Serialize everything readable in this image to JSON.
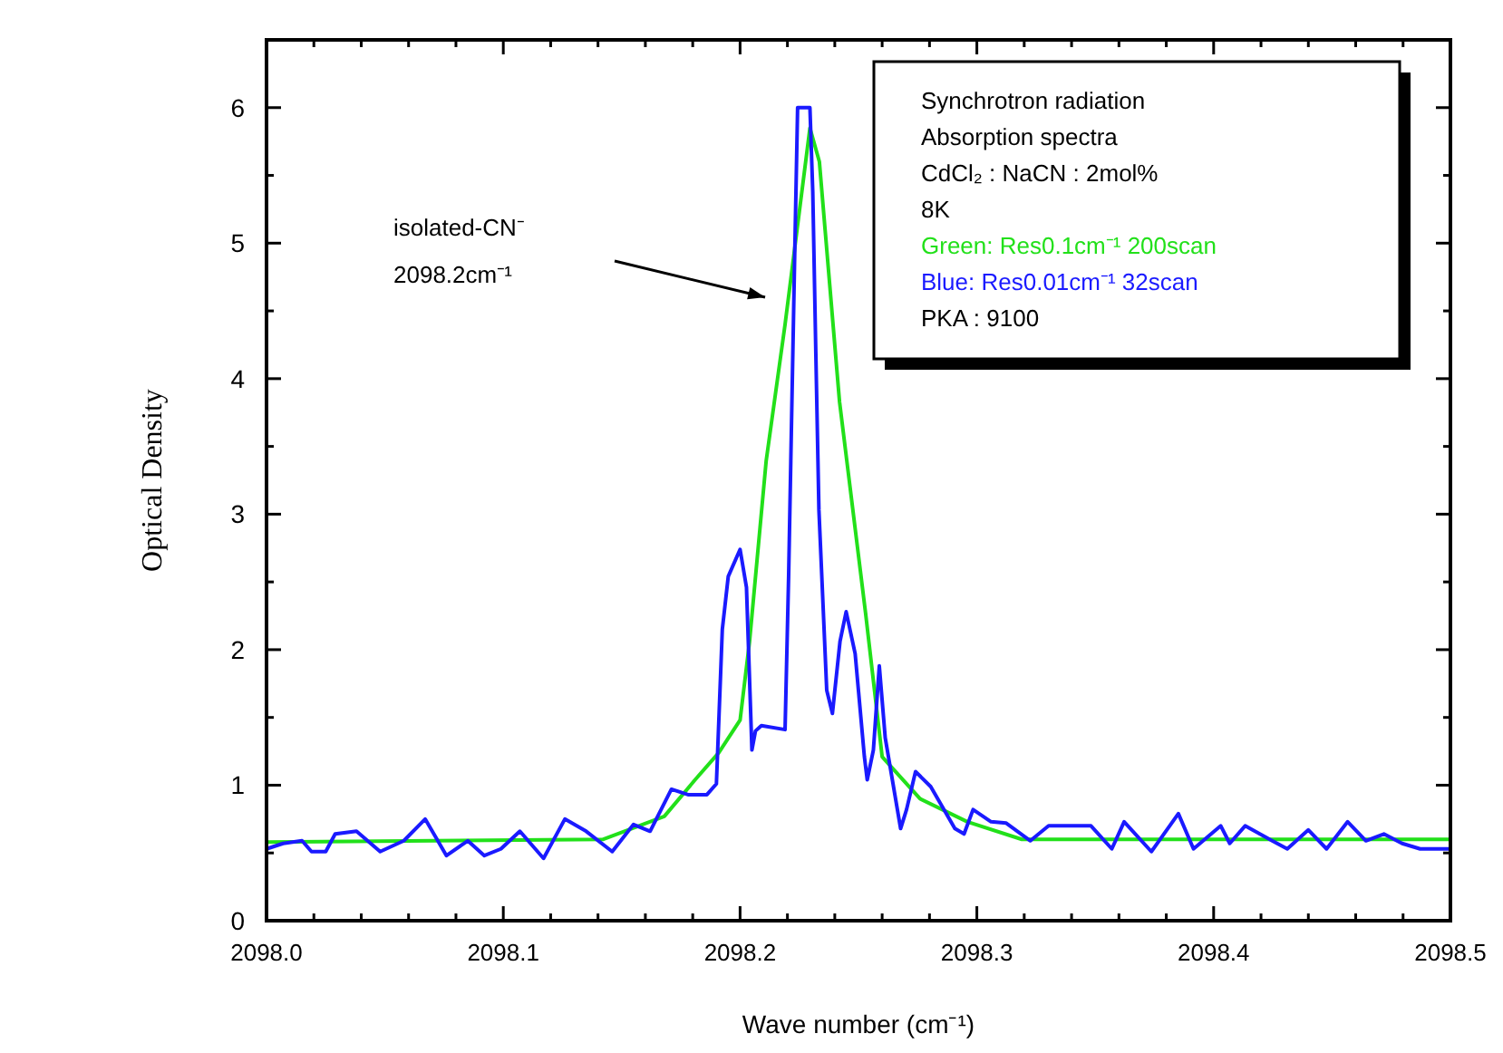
{
  "chart_data": {
    "type": "line",
    "xlabel": "Wave number (cm⁻¹)",
    "ylabel": "Optical Density",
    "xlim": [
      2098.0,
      2098.5
    ],
    "ylim": [
      0,
      6.5
    ],
    "xticks": [
      {
        "value": 2098.0,
        "label": "2098.0"
      },
      {
        "value": 2098.02,
        "label": null
      },
      {
        "value": 2098.04,
        "label": null
      },
      {
        "value": 2098.06,
        "label": null
      },
      {
        "value": 2098.08,
        "label": null
      },
      2098.1,
      {
        "value": 2098.12,
        "label": null
      },
      {
        "value": 2098.14,
        "label": null
      },
      {
        "value": 2098.16,
        "label": null
      },
      {
        "value": 2098.18,
        "label": null
      },
      2098.2,
      {
        "value": 2098.22,
        "label": null
      },
      {
        "value": 2098.24,
        "label": null
      },
      {
        "value": 2098.26,
        "label": null
      },
      {
        "value": 2098.28,
        "label": null
      },
      2098.3,
      {
        "value": 2098.32,
        "label": null
      },
      {
        "value": 2098.34,
        "label": null
      },
      {
        "value": 2098.36,
        "label": null
      },
      {
        "value": 2098.38,
        "label": null
      },
      2098.4,
      {
        "value": 2098.42,
        "label": null
      },
      {
        "value": 2098.44,
        "label": null
      },
      {
        "value": 2098.46,
        "label": null
      },
      {
        "value": 2098.48,
        "label": null
      },
      2098.5
    ],
    "yticks": [
      0,
      {
        "value": 0.5,
        "label": null
      },
      1,
      {
        "value": 1.5,
        "label": null
      },
      2,
      {
        "value": 2.5,
        "label": null
      },
      3,
      {
        "value": 3.5,
        "label": null
      },
      4,
      {
        "value": 4.5,
        "label": null
      },
      5,
      {
        "value": 5.5,
        "label": null
      },
      6
    ],
    "grid": false,
    "legend": "top right",
    "marker": "none",
    "line_style": "solid",
    "annotations": [
      "Synchrotron radiation",
      "Absorption spectra",
      "CdCl₂ : NaCN : 2mol%",
      "8K",
      "PKA : 9100",
      "isolated-CN⁻\n2098.2cm⁻¹"
    ],
    "series": [
      {
        "name": "Green: Res0.1cm⁻¹ 200scan",
        "color": "#22e01a",
        "x": [
          2098.0,
          2098.142,
          2098.168,
          2098.181,
          2098.191,
          2098.2,
          2098.204,
          2098.211,
          2098.219,
          2098.2295,
          2098.2335,
          2098.242,
          2098.253,
          2098.26,
          2098.276,
          2098.296,
          2098.319,
          2098.5
        ],
        "values": [
          0.58,
          0.6,
          0.77,
          1.04,
          1.24,
          1.48,
          2.06,
          3.39,
          4.4,
          5.85,
          5.6,
          3.83,
          2.27,
          1.21,
          0.9,
          0.73,
          0.6,
          0.6
        ]
      },
      {
        "name": "Blue: Res0.01cm⁻¹ 32scan",
        "color": "#1a1aff",
        "x": [
          2098.0,
          2098.007,
          2098.015,
          2098.019,
          2098.025,
          2098.029,
          2098.038,
          2098.048,
          2098.058,
          2098.067,
          2098.076,
          2098.085,
          2098.092,
          2098.099,
          2098.107,
          2098.117,
          2098.126,
          2098.135,
          2098.146,
          2098.155,
          2098.162,
          2098.171,
          2098.178,
          2098.186,
          2098.19,
          2098.1925,
          2098.195,
          2098.2,
          2098.2027,
          2098.205,
          2098.2065,
          2098.209,
          2098.219,
          2098.2205,
          2098.223,
          2098.2243,
          2098.2295,
          2098.2307,
          2098.232,
          2098.2333,
          2098.2366,
          2098.239,
          2098.2422,
          2098.2448,
          2098.2486,
          2098.2525,
          2098.2537,
          2098.2563,
          2098.2588,
          2098.2613,
          2098.2678,
          2098.2703,
          2098.2741,
          2098.2805,
          2098.2907,
          2098.2946,
          2098.2984,
          2098.306,
          2098.3124,
          2098.3226,
          2098.3303,
          2098.3482,
          2098.357,
          2098.3622,
          2098.3737,
          2098.3851,
          2098.3915,
          2098.403,
          2098.4068,
          2098.4133,
          2098.4247,
          2098.4311,
          2098.44,
          2098.4477,
          2098.4566,
          2098.4643,
          2098.4719,
          2098.4796,
          2098.4872,
          2098.5
        ],
        "values": [
          0.53,
          0.57,
          0.59,
          0.51,
          0.51,
          0.64,
          0.66,
          0.51,
          0.59,
          0.75,
          0.48,
          0.59,
          0.48,
          0.53,
          0.66,
          0.46,
          0.75,
          0.66,
          0.51,
          0.71,
          0.66,
          0.97,
          0.93,
          0.93,
          1.01,
          2.15,
          2.54,
          2.74,
          2.46,
          1.26,
          1.4,
          1.44,
          1.41,
          2.54,
          4.85,
          6.0,
          6.0,
          5.38,
          4.18,
          3.03,
          1.7,
          1.53,
          2.06,
          2.28,
          1.97,
          1.21,
          1.04,
          1.26,
          1.88,
          1.35,
          0.68,
          0.82,
          1.1,
          0.99,
          0.68,
          0.64,
          0.82,
          0.73,
          0.72,
          0.59,
          0.7,
          0.7,
          0.53,
          0.73,
          0.51,
          0.79,
          0.53,
          0.7,
          0.57,
          0.7,
          0.59,
          0.53,
          0.67,
          0.53,
          0.73,
          0.59,
          0.64,
          0.57,
          0.53,
          0.53
        ]
      }
    ]
  }
}
